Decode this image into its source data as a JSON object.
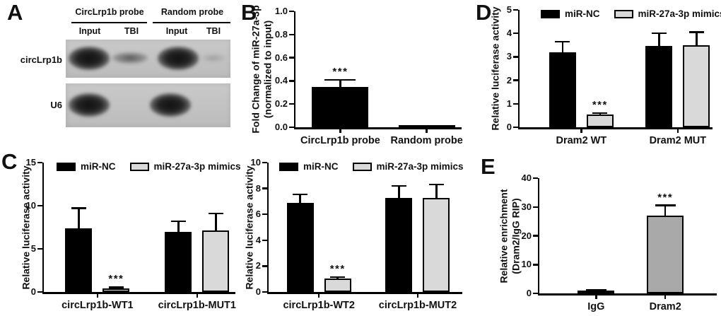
{
  "figure": {
    "panel_labels": {
      "a": "A",
      "b": "B",
      "c": "C",
      "d": "D",
      "e": "E"
    }
  },
  "panel_a": {
    "probe_groups": [
      "CircLrp1b probe",
      "Random probe"
    ],
    "lane_labels": [
      "Input",
      "TBI",
      "Input",
      "TBI"
    ],
    "row_labels": [
      "circLrp1b",
      "U6"
    ],
    "bands": {
      "circLrp1b": [
        "strong",
        "weak",
        "strong",
        "very-faint"
      ],
      "U6": [
        "strong",
        "none",
        "strong",
        "none"
      ]
    }
  },
  "chart_data": [
    {
      "panel": "B",
      "type": "bar",
      "categories": [
        "CircLrp1b probe",
        "Random probe"
      ],
      "values": [
        0.35,
        0.01
      ],
      "errors": [
        0.06,
        0
      ],
      "sig": [
        "***",
        null
      ],
      "bar_colors": [
        "#000000",
        "#000000"
      ],
      "ylabel": "Fold Change of miR-27a-3p\n(normalized to input)",
      "ylim": [
        0,
        1.0
      ],
      "yticks": [
        0,
        0.2,
        0.4,
        0.6,
        0.8,
        1.0
      ],
      "ytick_labels": [
        "0.0",
        "0.2",
        "0.4",
        "0.6",
        "0.8",
        "1.0"
      ],
      "legend_position": "none",
      "grid": false
    },
    {
      "panel": "C-left",
      "type": "bar",
      "categories": [
        "circLrp1b-WT1",
        "circLrp1b-MUT1"
      ],
      "series": [
        {
          "name": "miR-NC",
          "color": "#000000",
          "values": [
            7.4,
            7.0
          ],
          "errors": [
            2.3,
            1.2
          ],
          "sig": [
            null,
            null
          ]
        },
        {
          "name": "miR-27a-3p mimics",
          "color": "#d9d9d9",
          "values": [
            0.4,
            7.1
          ],
          "errors": [
            0.15,
            2.0
          ],
          "sig": [
            "***",
            null
          ]
        }
      ],
      "ylabel": "Relative luciferase activity",
      "ylim": [
        0,
        15
      ],
      "yticks": [
        0,
        5,
        10,
        15
      ],
      "ytick_labels": [
        "0",
        "5",
        "10",
        "15"
      ],
      "legend_position": "top",
      "grid": false
    },
    {
      "panel": "C-right",
      "type": "bar",
      "categories": [
        "circLrp1b-WT2",
        "circLrp1b-MUT2"
      ],
      "series": [
        {
          "name": "miR-NC",
          "color": "#000000",
          "values": [
            6.9,
            7.25
          ],
          "errors": [
            0.65,
            0.95
          ],
          "sig": [
            null,
            null
          ]
        },
        {
          "name": "miR-27a-3p mimics",
          "color": "#d9d9d9",
          "values": [
            1.05,
            7.25
          ],
          "errors": [
            0.1,
            1.05
          ],
          "sig": [
            "***",
            null
          ]
        }
      ],
      "ylabel": "Relative luciferase activity",
      "ylim": [
        0,
        10
      ],
      "yticks": [
        0,
        2,
        4,
        6,
        8,
        10
      ],
      "ytick_labels": [
        "0",
        "2",
        "4",
        "6",
        "8",
        "10"
      ],
      "legend_position": "top",
      "grid": false
    },
    {
      "panel": "D",
      "type": "bar",
      "categories": [
        "Dram2 WT",
        "Dram2 MUT"
      ],
      "series": [
        {
          "name": "miR-NC",
          "color": "#000000",
          "values": [
            3.2,
            3.45
          ],
          "errors": [
            0.45,
            0.55
          ],
          "sig": [
            null,
            null
          ]
        },
        {
          "name": "miR-27a-3p mimics",
          "color": "#d9d9d9",
          "values": [
            0.55,
            3.5
          ],
          "errors": [
            0.05,
            0.55
          ],
          "sig": [
            "***",
            null
          ]
        }
      ],
      "ylabel": "Relative luciferase activity",
      "ylim": [
        0,
        5
      ],
      "yticks": [
        0,
        1,
        2,
        3,
        4,
        5
      ],
      "ytick_labels": [
        "0",
        "1",
        "2",
        "3",
        "4",
        "5"
      ],
      "legend_position": "top",
      "grid": false
    },
    {
      "panel": "E",
      "type": "bar",
      "categories": [
        "IgG",
        "Dram2"
      ],
      "values": [
        0.9,
        27
      ],
      "errors": [
        0.3,
        3.5
      ],
      "sig": [
        null,
        "***"
      ],
      "bar_colors": [
        "#000000",
        "#a9a9a9"
      ],
      "ylabel": "Relative enrichment\n(Dram2/IgG RIP)",
      "ylim": [
        0,
        40
      ],
      "yticks": [
        0,
        10,
        20,
        30,
        40
      ],
      "ytick_labels": [
        "0",
        "10",
        "20",
        "30",
        "40"
      ],
      "legend_position": "none",
      "grid": false
    }
  ]
}
